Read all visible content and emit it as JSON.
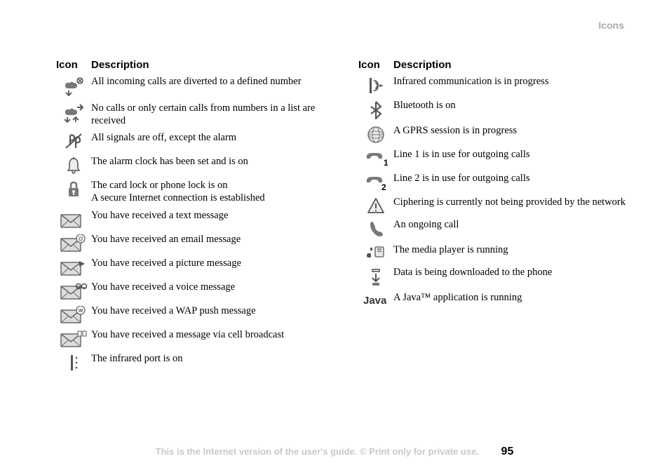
{
  "header": {
    "section_title": "Icons"
  },
  "table_header": {
    "icon": "Icon",
    "description": "Description"
  },
  "left_column": [
    {
      "icon": "divert-calls",
      "text": "All incoming calls are diverted to a defined number"
    },
    {
      "icon": "divert-list",
      "text": "No calls or only certain calls from numbers in a list are received"
    },
    {
      "icon": "signals-off",
      "text": "All signals are off, except the alarm"
    },
    {
      "icon": "alarm-bell",
      "text": "The alarm clock has been set and is on"
    },
    {
      "icon": "lock-secure",
      "text": "The card lock or phone lock is on\nA secure Internet connection is established"
    },
    {
      "icon": "envelope-text",
      "text": "You have received a text message"
    },
    {
      "icon": "envelope-email",
      "text": "You have received an email message"
    },
    {
      "icon": "envelope-picture",
      "text": "You have received a picture message"
    },
    {
      "icon": "envelope-voice",
      "text": "You have received a voice message"
    },
    {
      "icon": "envelope-wap",
      "text": "You have received a WAP push message"
    },
    {
      "icon": "envelope-broadcast",
      "text": "You have received a message via cell broadcast"
    },
    {
      "icon": "infrared-port",
      "text": "The infrared port is on"
    }
  ],
  "right_column": [
    {
      "icon": "infrared-active",
      "text": "Infrared communication is in progress"
    },
    {
      "icon": "bluetooth",
      "text": "Bluetooth is on"
    },
    {
      "icon": "gprs-globe",
      "text": "A GPRS session is in progress"
    },
    {
      "icon": "line-1",
      "text": "Line 1 is in use for outgoing calls"
    },
    {
      "icon": "line-2",
      "text": "Line 2 is in use for outgoing calls"
    },
    {
      "icon": "cipher-warning",
      "text": "Ciphering is currently not being provided by the network"
    },
    {
      "icon": "ongoing-call",
      "text": "An ongoing call"
    },
    {
      "icon": "media-player",
      "text": "The media player is running"
    },
    {
      "icon": "download-data",
      "text": "Data is being downloaded to the phone"
    },
    {
      "icon": "java-app",
      "text": "A Java™ application is running"
    }
  ],
  "footer": {
    "text": "This is the Internet version of the user's guide. © Print only for private use.",
    "page": "95"
  },
  "colors": {
    "icon_gray": "#777777",
    "icon_dark": "#555555",
    "icon_light": "#cccccc",
    "envelope_fill": "#dcdcdc",
    "envelope_stroke": "#6a6a6a"
  }
}
